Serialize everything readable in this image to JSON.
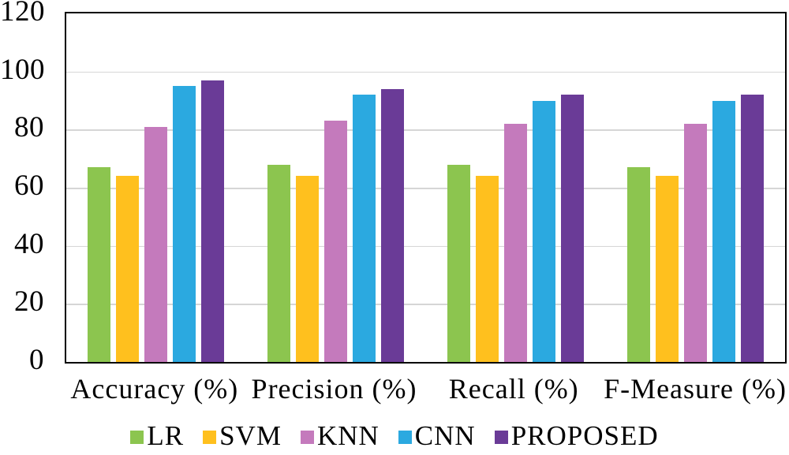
{
  "chart_data": {
    "type": "bar",
    "title": "",
    "xlabel": "",
    "ylabel": "",
    "categories": [
      "Accuracy (%)",
      "Precision (%)",
      "Recall (%)",
      "F-Measure (%)"
    ],
    "series": [
      {
        "name": "LR",
        "color": "#8CC54F",
        "values": [
          67,
          68,
          68,
          67
        ]
      },
      {
        "name": "SVM",
        "color": "#FFC01E",
        "values": [
          64,
          64,
          64,
          64
        ]
      },
      {
        "name": "KNN",
        "color": "#C47ABC",
        "values": [
          81,
          83,
          82,
          82
        ]
      },
      {
        "name": "CNN",
        "color": "#2BA9E0",
        "values": [
          95,
          92,
          90,
          90
        ]
      },
      {
        "name": "PROPOSED",
        "color": "#6A3B97",
        "values": [
          97,
          94,
          92,
          92
        ]
      }
    ],
    "ylim": [
      0,
      120
    ],
    "yticks": [
      0,
      20,
      40,
      60,
      80,
      100,
      120
    ],
    "grid": "horizontal",
    "legend_position": "bottom"
  },
  "colors": {
    "background": "#FFFFFF",
    "grid": "#D6D6D6",
    "axis_border": "#000000",
    "text": "#000000"
  }
}
